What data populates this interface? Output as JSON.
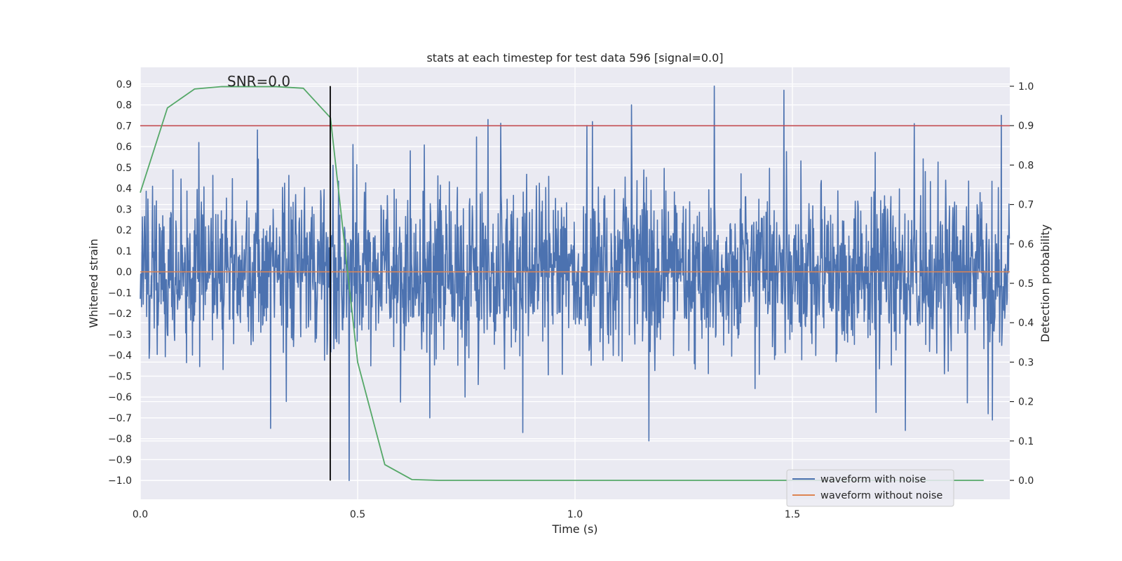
{
  "chart_data": {
    "type": "line",
    "title": "stats at each timestep for test data 596 [signal=0.0]",
    "xlabel": "Time (s)",
    "ylabel": "Whitened strain",
    "y2label": "Detection probability",
    "xlim": [
      0.0,
      2.0
    ],
    "ylim": [
      -1.09,
      0.98
    ],
    "y2lim": [
      -0.048,
      1.048
    ],
    "x_ticks": [
      0.0,
      0.5,
      1.0,
      1.5
    ],
    "x_tick_labels": [
      "0.0",
      "0.5",
      "1.0",
      "1.5"
    ],
    "y_ticks": [
      0.9,
      0.8,
      0.7,
      0.6,
      0.5,
      0.4,
      0.3,
      0.2,
      0.1,
      0.0,
      -0.1,
      -0.2,
      -0.3,
      -0.4,
      -0.5,
      -0.6,
      -0.7,
      -0.8,
      -0.9,
      -1.0
    ],
    "y_tick_labels": [
      "0.9",
      "0.8",
      "0.7",
      "0.6",
      "0.5",
      "0.4",
      "0.3",
      "0.2",
      "0.1",
      "0.0",
      "−0.1",
      "−0.2",
      "−0.3",
      "−0.4",
      "−0.5",
      "−0.6",
      "−0.7",
      "−0.8",
      "−0.9",
      "−1.0"
    ],
    "y2_ticks": [
      1.0,
      0.9,
      0.8,
      0.7,
      0.6,
      0.5,
      0.4,
      0.3,
      0.2,
      0.1,
      0.0
    ],
    "y2_tick_labels": [
      "1.0",
      "0.9",
      "0.8",
      "0.7",
      "0.6",
      "0.5",
      "0.4",
      "0.3",
      "0.2",
      "0.1",
      "0.0"
    ],
    "grid": true,
    "annotation": "SNR=0.0",
    "annotation_position": {
      "x": 0.2,
      "y": 0.9
    },
    "vline_x": 0.437,
    "vline_y": [
      -1.0,
      0.89
    ],
    "threshold": {
      "y": 0.7,
      "color": "#c44e52"
    },
    "series": [
      {
        "name": "waveform with noise",
        "axis": "left",
        "color": "#4c72b0",
        "noise": {
          "x_start": 0.0,
          "x_end": 2.0,
          "samples": 2048,
          "std": 0.2,
          "seed": 596,
          "clip": [
            -1.0,
            0.89
          ]
        },
        "spikes": [
          [
            0.3,
            -0.75
          ],
          [
            0.27,
            0.68
          ],
          [
            0.135,
            0.62
          ],
          [
            0.48,
            -1.0
          ],
          [
            0.8,
            0.73
          ],
          [
            0.88,
            -0.77
          ],
          [
            1.04,
            0.72
          ],
          [
            1.13,
            0.8
          ],
          [
            1.17,
            -0.81
          ],
          [
            1.32,
            0.89
          ],
          [
            1.48,
            0.87
          ],
          [
            1.76,
            -0.76
          ],
          [
            1.78,
            0.71
          ],
          [
            1.98,
            0.75
          ],
          [
            1.96,
            -0.71
          ],
          [
            1.95,
            -0.68
          ]
        ]
      },
      {
        "name": "waveform without noise",
        "axis": "left",
        "color": "#dd8452",
        "x": [
          0.0,
          2.0
        ],
        "y": [
          0.0,
          0.0
        ]
      },
      {
        "name": "detection probability",
        "axis": "right",
        "color": "#55a868",
        "x": [
          0.0,
          0.0625,
          0.125,
          0.1875,
          0.25,
          0.3125,
          0.375,
          0.4375,
          0.5,
          0.5625,
          0.625,
          0.6875,
          0.75,
          1.0,
          1.5,
          1.94
        ],
        "y": [
          0.73,
          0.945,
          0.993,
          0.999,
          0.999,
          0.999,
          0.995,
          0.92,
          0.3,
          0.04,
          0.002,
          0.0,
          0.0,
          0.0,
          0.0,
          0.0
        ]
      }
    ],
    "legend": {
      "placement": "lower-right",
      "entries": [
        "waveform with noise",
        "waveform without noise"
      ]
    }
  }
}
